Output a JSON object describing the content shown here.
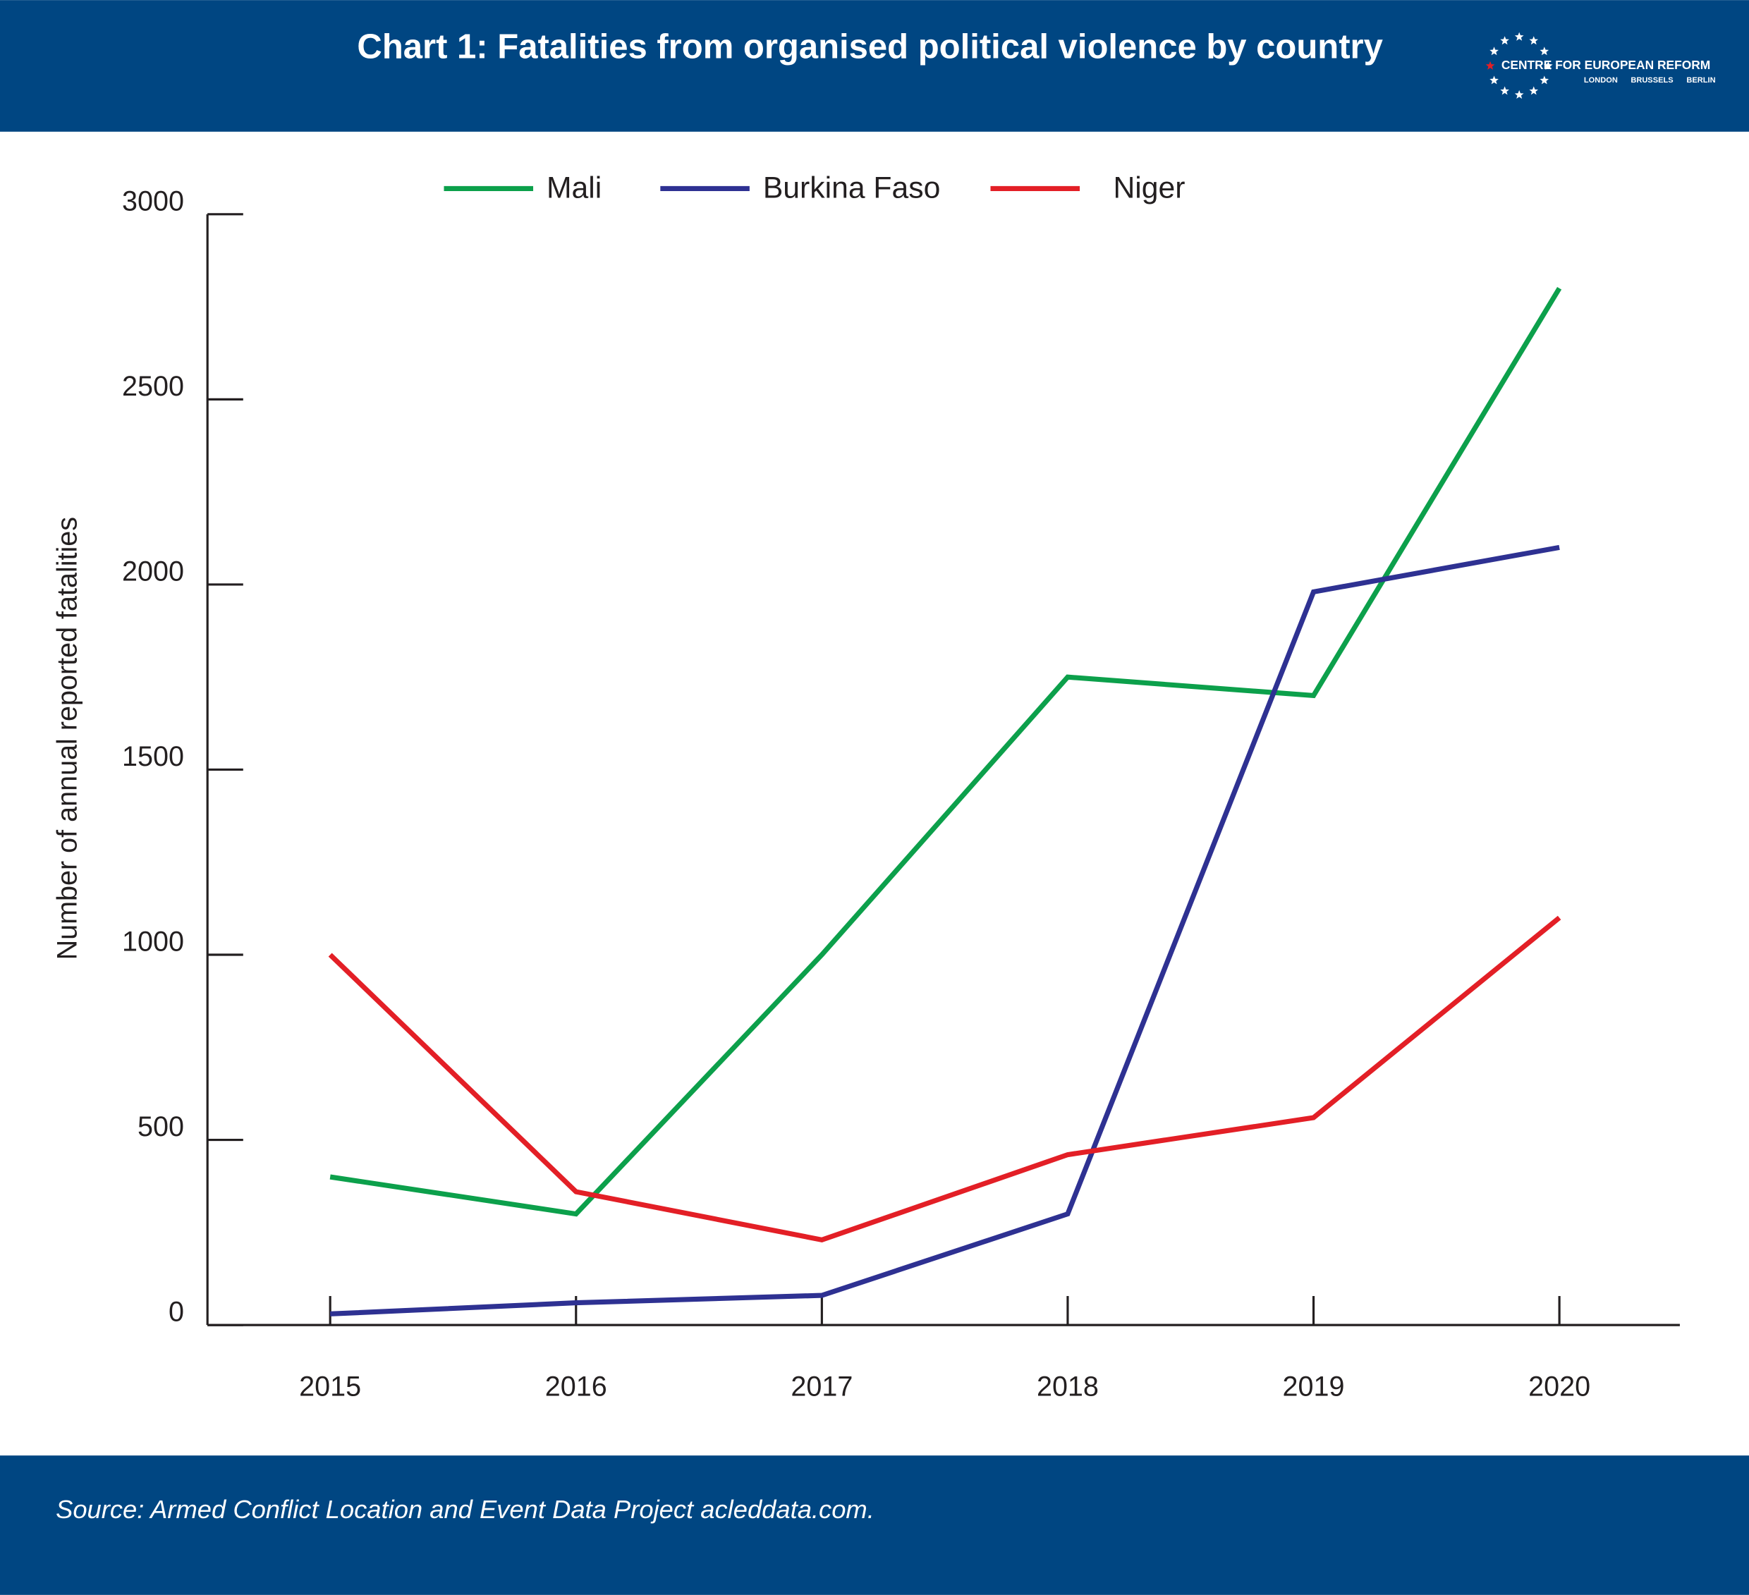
{
  "chart_data": {
    "type": "line",
    "title": "Chart 1: Fatalities from organised political violence by country",
    "logo": {
      "name": "CENTRE FOR EUROPEAN REFORM",
      "cities": [
        "LONDON",
        "BRUSSELS",
        "BERLIN"
      ]
    },
    "y_label": "Number of annual reported fatalities",
    "source": "Source: Armed Conflict Location and Event Data Project acleddata.com.",
    "categories": [
      "2015",
      "2016",
      "2017",
      "2018",
      "2019",
      "2020"
    ],
    "series": [
      {
        "name": "Mali",
        "color": "#0ca04b",
        "values": [
          400,
          300,
          1000,
          1750,
          1700,
          2800
        ]
      },
      {
        "name": "Burkina Faso",
        "color": "#2e3192",
        "values": [
          30,
          60,
          80,
          300,
          1980,
          2100
        ]
      },
      {
        "name": "Niger",
        "color": "#e31f26",
        "values": [
          1000,
          360,
          230,
          460,
          560,
          1100
        ]
      }
    ],
    "ylim": [
      0,
      3000
    ],
    "yticks": [
      0,
      500,
      1000,
      1500,
      2000,
      2500,
      3000
    ],
    "grid": false,
    "legend": "top"
  }
}
